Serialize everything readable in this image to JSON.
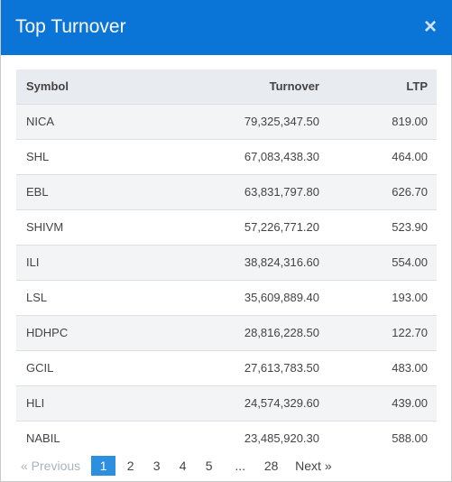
{
  "modal": {
    "title": "Top Turnover",
    "close_glyph": "×"
  },
  "table": {
    "headers": {
      "symbol": "Symbol",
      "turnover": "Turnover",
      "ltp": "LTP"
    },
    "rows": [
      {
        "symbol": "NICA",
        "turnover": "79,325,347.50",
        "ltp": "819.00"
      },
      {
        "symbol": "SHL",
        "turnover": "67,083,438.30",
        "ltp": "464.00"
      },
      {
        "symbol": "EBL",
        "turnover": "63,831,797.80",
        "ltp": "626.70"
      },
      {
        "symbol": "SHIVM",
        "turnover": "57,226,771.20",
        "ltp": "523.90"
      },
      {
        "symbol": "ILI",
        "turnover": "38,824,316.60",
        "ltp": "554.00"
      },
      {
        "symbol": "LSL",
        "turnover": "35,609,889.40",
        "ltp": "193.00"
      },
      {
        "symbol": "HDHPC",
        "turnover": "28,816,228.50",
        "ltp": "122.70"
      },
      {
        "symbol": "GCIL",
        "turnover": "27,613,783.50",
        "ltp": "483.00"
      },
      {
        "symbol": "HLI",
        "turnover": "24,574,329.60",
        "ltp": "439.00"
      },
      {
        "symbol": "NABIL",
        "turnover": "23,485,920.30",
        "ltp": "588.00"
      }
    ]
  },
  "pagination": {
    "previous": "« Previous",
    "pages": [
      "1",
      "2",
      "3",
      "4",
      "5"
    ],
    "ellipsis": "...",
    "last": "28",
    "next": "Next »",
    "current": "1"
  },
  "colors": {
    "header": "#0a75d6",
    "active_page": "#2d8fe0"
  }
}
